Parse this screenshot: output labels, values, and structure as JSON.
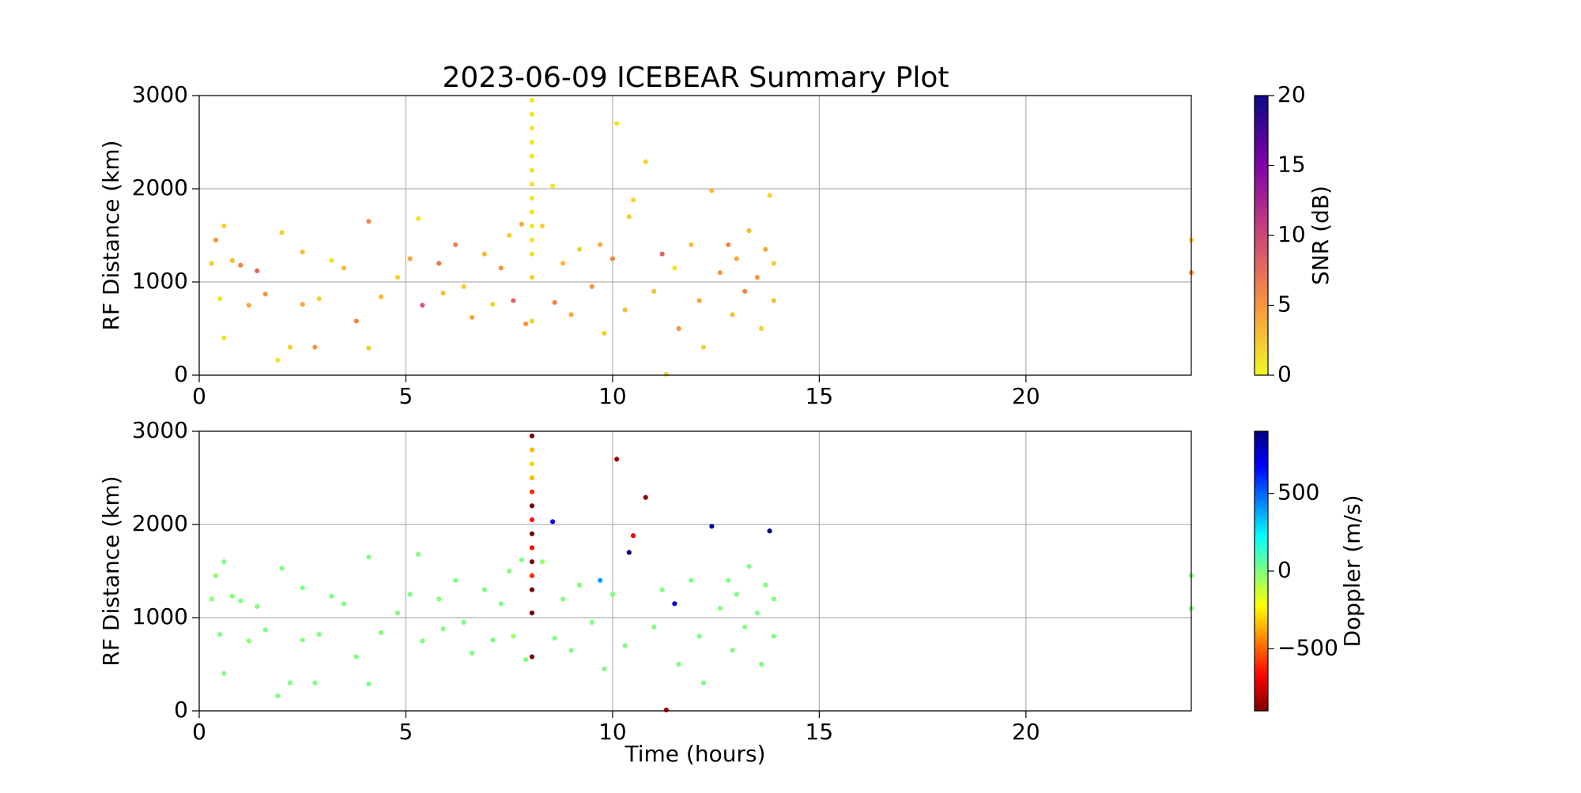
{
  "chart_data": [
    {
      "type": "scatter",
      "title": "2023-06-09 ICEBEAR Summary Plot",
      "ylabel": "RF Distance (km)",
      "xlim": [
        0,
        24
      ],
      "ylim": [
        0,
        3000
      ],
      "xticks": [
        0,
        5,
        10,
        15,
        20
      ],
      "yticks": [
        0,
        1000,
        2000,
        3000
      ],
      "grid": true,
      "colorbar": {
        "label": "SNR (dB)",
        "lim": [
          0,
          20
        ],
        "ticks": [
          0,
          5,
          10,
          15,
          20
        ],
        "cmap": "plasma_r"
      },
      "x": [
        0.3,
        0.4,
        0.5,
        0.6,
        0.6,
        0.8,
        1.0,
        1.2,
        1.4,
        1.6,
        1.9,
        2.0,
        2.2,
        2.5,
        2.5,
        2.8,
        2.9,
        3.2,
        3.5,
        3.8,
        4.1,
        4.1,
        4.4,
        4.8,
        5.1,
        5.3,
        5.4,
        5.8,
        5.9,
        6.2,
        6.4,
        6.6,
        6.9,
        7.1,
        7.3,
        7.5,
        7.6,
        7.8,
        7.9,
        8.3,
        8.55,
        8.6,
        8.8,
        9.0,
        9.2,
        9.5,
        9.7,
        9.8,
        10.0,
        10.1,
        10.3,
        10.4,
        10.5,
        10.8,
        11.0,
        11.2,
        11.3,
        11.5,
        11.6,
        11.9,
        12.1,
        12.2,
        12.4,
        12.6,
        12.8,
        12.9,
        13.0,
        13.2,
        13.3,
        13.5,
        13.6,
        13.7,
        13.8,
        13.9,
        13.9,
        24.0,
        24.0,
        8.05,
        8.05,
        8.05,
        8.05,
        8.05,
        8.05,
        8.05,
        8.05,
        8.05,
        8.05,
        8.05,
        8.05,
        8.05,
        8.05
      ],
      "values": [
        1200,
        1450,
        820,
        1600,
        400,
        1230,
        1180,
        750,
        1120,
        870,
        160,
        1530,
        300,
        1320,
        760,
        300,
        820,
        1230,
        1150,
        580,
        1650,
        290,
        840,
        1050,
        1250,
        1680,
        750,
        1200,
        880,
        1400,
        950,
        620,
        1300,
        760,
        1150,
        1500,
        800,
        1620,
        550,
        1600,
        2030,
        780,
        1200,
        650,
        1350,
        950,
        1400,
        450,
        1250,
        2700,
        700,
        1700,
        1880,
        2290,
        900,
        1300,
        10,
        1150,
        500,
        1400,
        800,
        300,
        1980,
        1100,
        1400,
        650,
        1250,
        900,
        1550,
        1050,
        500,
        1350,
        1930,
        800,
        1200,
        1100,
        1450,
        1300,
        1450,
        1600,
        1750,
        1900,
        2050,
        2200,
        2350,
        2500,
        2650,
        2800,
        2950,
        580,
        1050
      ],
      "c": [
        2,
        5,
        1,
        2,
        1,
        3,
        6,
        4,
        8,
        5,
        1,
        2,
        2,
        3,
        4,
        5,
        2,
        1,
        3,
        6,
        6,
        2,
        3,
        2,
        4,
        1,
        9,
        7,
        3,
        6,
        2,
        4,
        3,
        2,
        5,
        2,
        8,
        4,
        5,
        2,
        1,
        6,
        3,
        4,
        2,
        5,
        4,
        2,
        6,
        1,
        3,
        2,
        2,
        2,
        3,
        8,
        2,
        1,
        5,
        3,
        4,
        2,
        3,
        5,
        6,
        3,
        4,
        6,
        3,
        5,
        2,
        4,
        2,
        3,
        2,
        5,
        2,
        1,
        1,
        1,
        1,
        1,
        1,
        1,
        1,
        1,
        1,
        1,
        1,
        2,
        2
      ]
    },
    {
      "type": "scatter",
      "ylabel": "RF Distance (km)",
      "xlabel": "Time (hours)",
      "xlim": [
        0,
        24
      ],
      "ylim": [
        0,
        3000
      ],
      "xticks": [
        0,
        5,
        10,
        15,
        20
      ],
      "yticks": [
        0,
        1000,
        2000,
        3000
      ],
      "grid": true,
      "colorbar": {
        "label": "Doppler (m/s)",
        "lim": [
          -900,
          900
        ],
        "ticks": [
          {
            "value": -500,
            "label": "−500"
          },
          0,
          500
        ],
        "cmap": "jet_r"
      },
      "x": [
        0.3,
        0.4,
        0.5,
        0.6,
        0.6,
        0.8,
        1.0,
        1.2,
        1.4,
        1.6,
        1.9,
        2.0,
        2.2,
        2.5,
        2.5,
        2.8,
        2.9,
        3.2,
        3.5,
        3.8,
        4.1,
        4.1,
        4.4,
        4.8,
        5.1,
        5.3,
        5.4,
        5.8,
        5.9,
        6.2,
        6.4,
        6.6,
        6.9,
        7.1,
        7.3,
        7.5,
        7.6,
        7.8,
        7.9,
        8.3,
        8.55,
        8.6,
        8.8,
        9.0,
        9.2,
        9.5,
        9.7,
        9.8,
        10.0,
        10.1,
        10.3,
        10.4,
        10.5,
        10.8,
        11.0,
        11.2,
        11.3,
        11.5,
        11.6,
        11.9,
        12.1,
        12.2,
        12.4,
        12.6,
        12.8,
        12.9,
        13.0,
        13.2,
        13.3,
        13.5,
        13.6,
        13.7,
        13.8,
        13.9,
        13.9,
        24.0,
        24.0,
        8.05,
        8.05,
        8.05,
        8.05,
        8.05,
        8.05,
        8.05,
        8.05,
        8.05,
        8.05,
        8.05,
        8.05,
        8.05,
        8.05
      ],
      "values": [
        1200,
        1450,
        820,
        1600,
        400,
        1230,
        1180,
        750,
        1120,
        870,
        160,
        1530,
        300,
        1320,
        760,
        300,
        820,
        1230,
        1150,
        580,
        1650,
        290,
        840,
        1050,
        1250,
        1680,
        750,
        1200,
        880,
        1400,
        950,
        620,
        1300,
        760,
        1150,
        1500,
        800,
        1620,
        550,
        1600,
        2030,
        780,
        1200,
        650,
        1350,
        950,
        1400,
        450,
        1250,
        2700,
        700,
        1700,
        1880,
        2290,
        900,
        1300,
        10,
        1150,
        500,
        1400,
        800,
        300,
        1980,
        1100,
        1400,
        650,
        1250,
        900,
        1550,
        1050,
        500,
        1350,
        1930,
        800,
        1200,
        1100,
        1450,
        1300,
        1450,
        1600,
        1750,
        1900,
        2050,
        2200,
        2350,
        2500,
        2650,
        2800,
        2950,
        580,
        1050
      ],
      "c": [
        -20,
        -30,
        0,
        10,
        0,
        -10,
        0,
        -20,
        0,
        10,
        0,
        0,
        0,
        0,
        0,
        0,
        0,
        0,
        0,
        0,
        0,
        0,
        0,
        0,
        0,
        0,
        0,
        0,
        0,
        0,
        0,
        0,
        0,
        0,
        0,
        0,
        -40,
        0,
        0,
        -30,
        700,
        0,
        0,
        0,
        0,
        0,
        400,
        0,
        0,
        -850,
        0,
        900,
        -700,
        -850,
        0,
        0,
        -800,
        750,
        0,
        0,
        0,
        0,
        850,
        0,
        0,
        0,
        0,
        0,
        0,
        0,
        0,
        0,
        900,
        0,
        0,
        0,
        0,
        -900,
        -600,
        -900,
        -650,
        -900,
        -650,
        -900,
        -600,
        -350,
        -300,
        -350,
        -900,
        -900,
        -900
      ]
    }
  ]
}
